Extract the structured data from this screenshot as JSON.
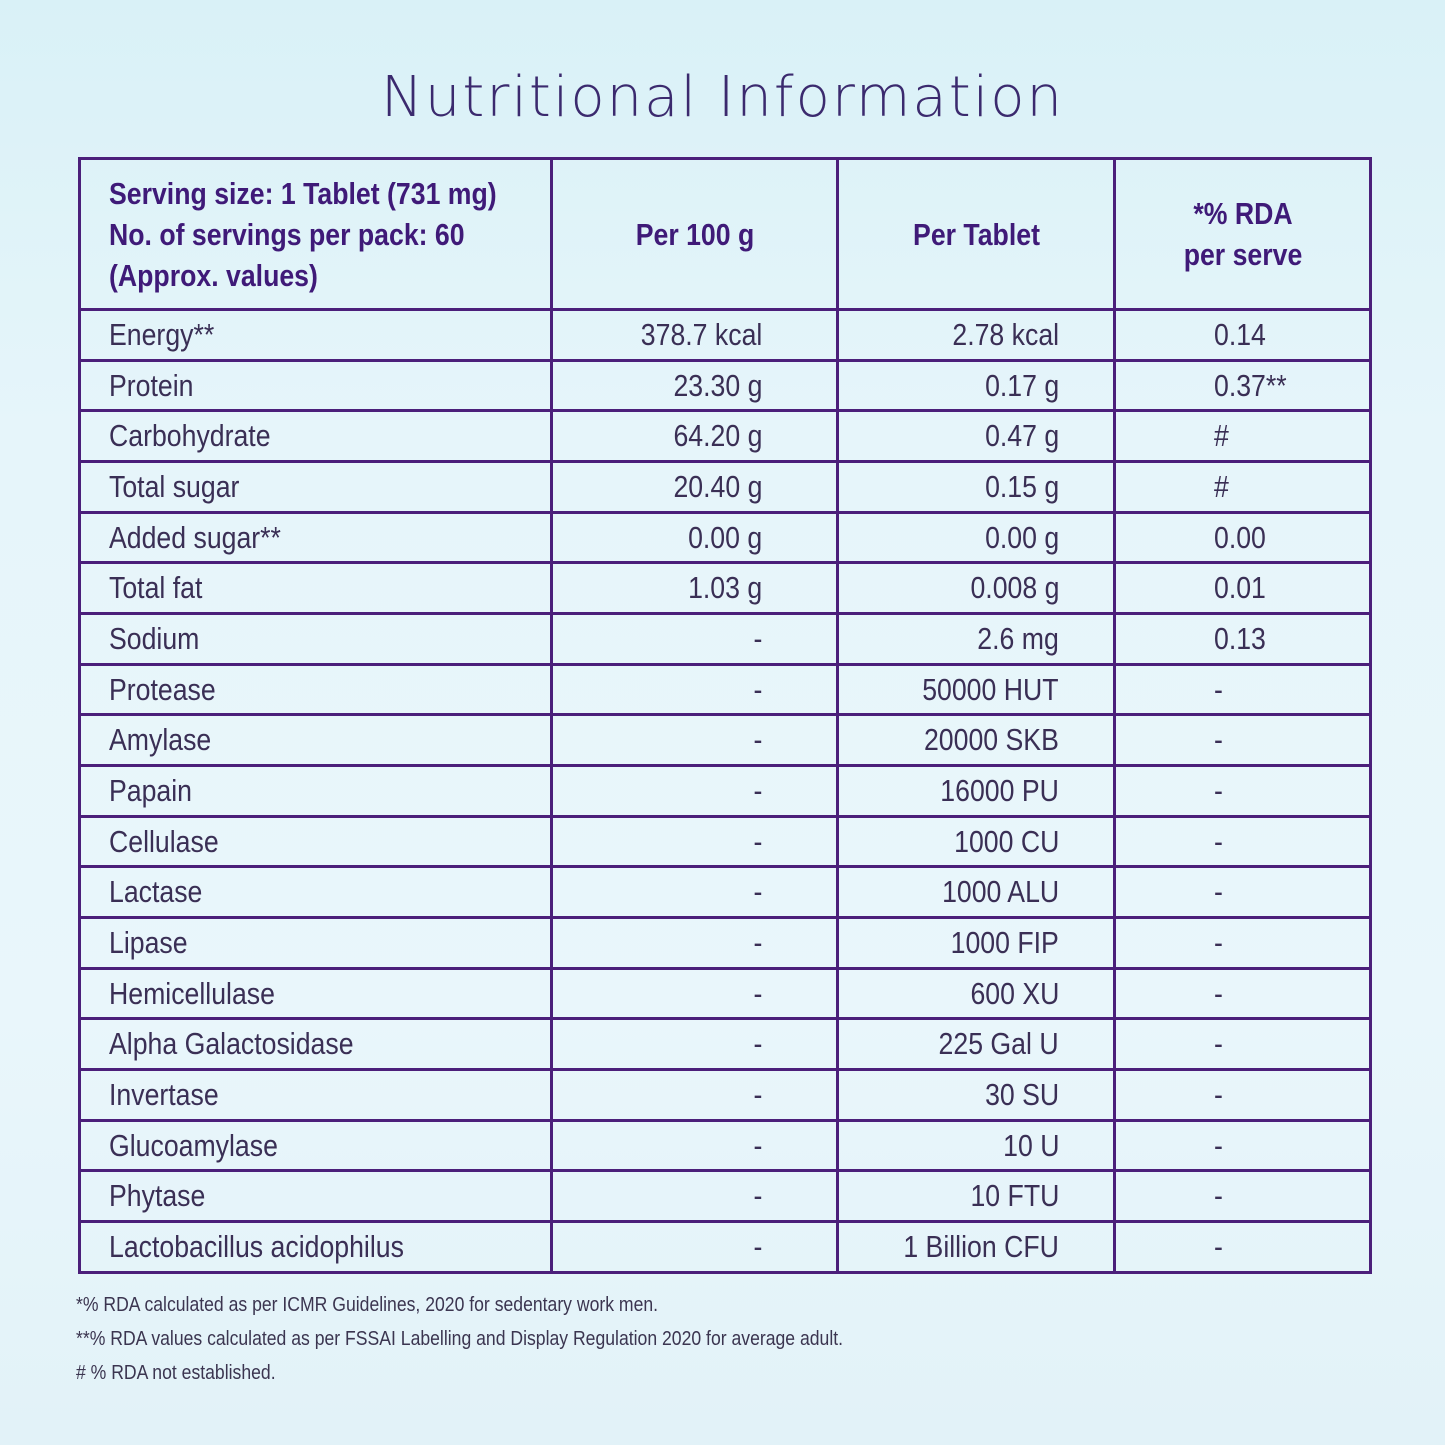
{
  "title": "Nutritional Information",
  "header": {
    "serving_line1": "Serving size: 1 Tablet (731 mg)",
    "serving_line2": "No. of servings per pack: 60",
    "serving_line3": "(Approx. values)",
    "per100": "Per 100 g",
    "pertablet": "Per Tablet",
    "rda_line1": "*% RDA",
    "rda_line2": "per serve"
  },
  "rows": [
    {
      "name": "Energy**",
      "per100": "378.7 kcal",
      "pertablet": "2.78 kcal",
      "rda": "0.14"
    },
    {
      "name": "Protein",
      "per100": "23.30 g",
      "pertablet": "0.17 g",
      "rda": "0.37**"
    },
    {
      "name": "Carbohydrate",
      "per100": "64.20 g",
      "pertablet": "0.47 g",
      "rda": "#"
    },
    {
      "name": "Total sugar",
      "per100": "20.40 g",
      "pertablet": "0.15 g",
      "rda": "#"
    },
    {
      "name": "Added sugar**",
      "per100": "0.00 g",
      "pertablet": "0.00 g",
      "rda": "0.00"
    },
    {
      "name": "Total fat",
      "per100": "1.03 g",
      "pertablet": "0.008 g",
      "rda": "0.01"
    },
    {
      "name": "Sodium",
      "per100": "-",
      "pertablet": "2.6 mg",
      "rda": "0.13"
    },
    {
      "name": "Protease",
      "per100": "-",
      "pertablet": "50000 HUT",
      "rda": "-"
    },
    {
      "name": "Amylase",
      "per100": "-",
      "pertablet": "20000 SKB",
      "rda": "-"
    },
    {
      "name": "Papain",
      "per100": "-",
      "pertablet": "16000 PU",
      "rda": "-"
    },
    {
      "name": "Cellulase",
      "per100": "-",
      "pertablet": "1000 CU",
      "rda": "-"
    },
    {
      "name": "Lactase",
      "per100": "-",
      "pertablet": "1000 ALU",
      "rda": "-"
    },
    {
      "name": "Lipase",
      "per100": "-",
      "pertablet": "1000 FIP",
      "rda": "-"
    },
    {
      "name": "Hemicellulase",
      "per100": "-",
      "pertablet": "600 XU",
      "rda": "-"
    },
    {
      "name": "Alpha Galactosidase",
      "per100": "-",
      "pertablet": "225 Gal U",
      "rda": "-"
    },
    {
      "name": "Invertase",
      "per100": "-",
      "pertablet": "30 SU",
      "rda": "-"
    },
    {
      "name": "Glucoamylase",
      "per100": "-",
      "pertablet": "10 U",
      "rda": "-"
    },
    {
      "name": "Phytase",
      "per100": "-",
      "pertablet": "10 FTU",
      "rda": "-"
    },
    {
      "name": "Lactobacillus acidophilus",
      "per100": "-",
      "pertablet": "1 Billion CFU",
      "rda": "-"
    }
  ],
  "footnotes": [
    "*% RDA calculated as per ICMR Guidelines, 2020 for sedentary work men.",
    "**% RDA values calculated as per FSSAI Labelling and Display Regulation 2020 for average adult.",
    "# % RDA not established."
  ]
}
